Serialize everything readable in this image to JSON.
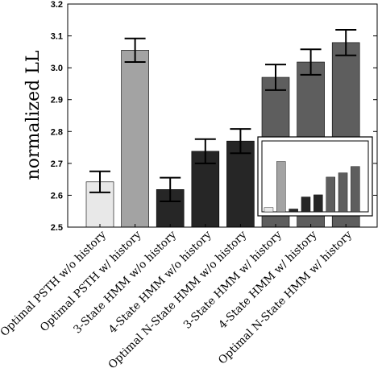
{
  "chart_data": {
    "type": "bar",
    "title": "",
    "xlabel": "",
    "ylabel": "normalized LL",
    "ylim": [
      2.5,
      3.2
    ],
    "yticks": [
      "2.5",
      "2.6",
      "2.7",
      "2.8",
      "2.9",
      "3.0",
      "3.1",
      "3.2"
    ],
    "grid": false,
    "error_bars": true,
    "categories": [
      "Optimal PSTH w/o history",
      "Optimal PSTH w/ history",
      "3-State HMM w/o history",
      "4-State HMM w/o history",
      "Optimal N-State HMM w/o history",
      "3-State HMM w/ history",
      "4-State HMM w/ history",
      "Optimal N-State HMM w/ history"
    ],
    "values": [
      2.642,
      3.055,
      2.618,
      2.738,
      2.77,
      2.97,
      3.018,
      3.079
    ],
    "errors": [
      0.033,
      0.037,
      0.037,
      0.038,
      0.038,
      0.04,
      0.04,
      0.04
    ],
    "colors": [
      "#e8e8e8",
      "#a3a3a3",
      "#262626",
      "#262626",
      "#262626",
      "#5e5e5e",
      "#5e5e5e",
      "#5e5e5e"
    ],
    "inset": {
      "values": [
        0.06,
        0.71,
        0.04,
        0.21,
        0.24,
        0.49,
        0.55,
        0.64
      ],
      "colors": [
        "#e8e8e8",
        "#a3a3a3",
        "#262626",
        "#262626",
        "#262626",
        "#5e5e5e",
        "#5e5e5e",
        "#5e5e5e"
      ]
    }
  }
}
